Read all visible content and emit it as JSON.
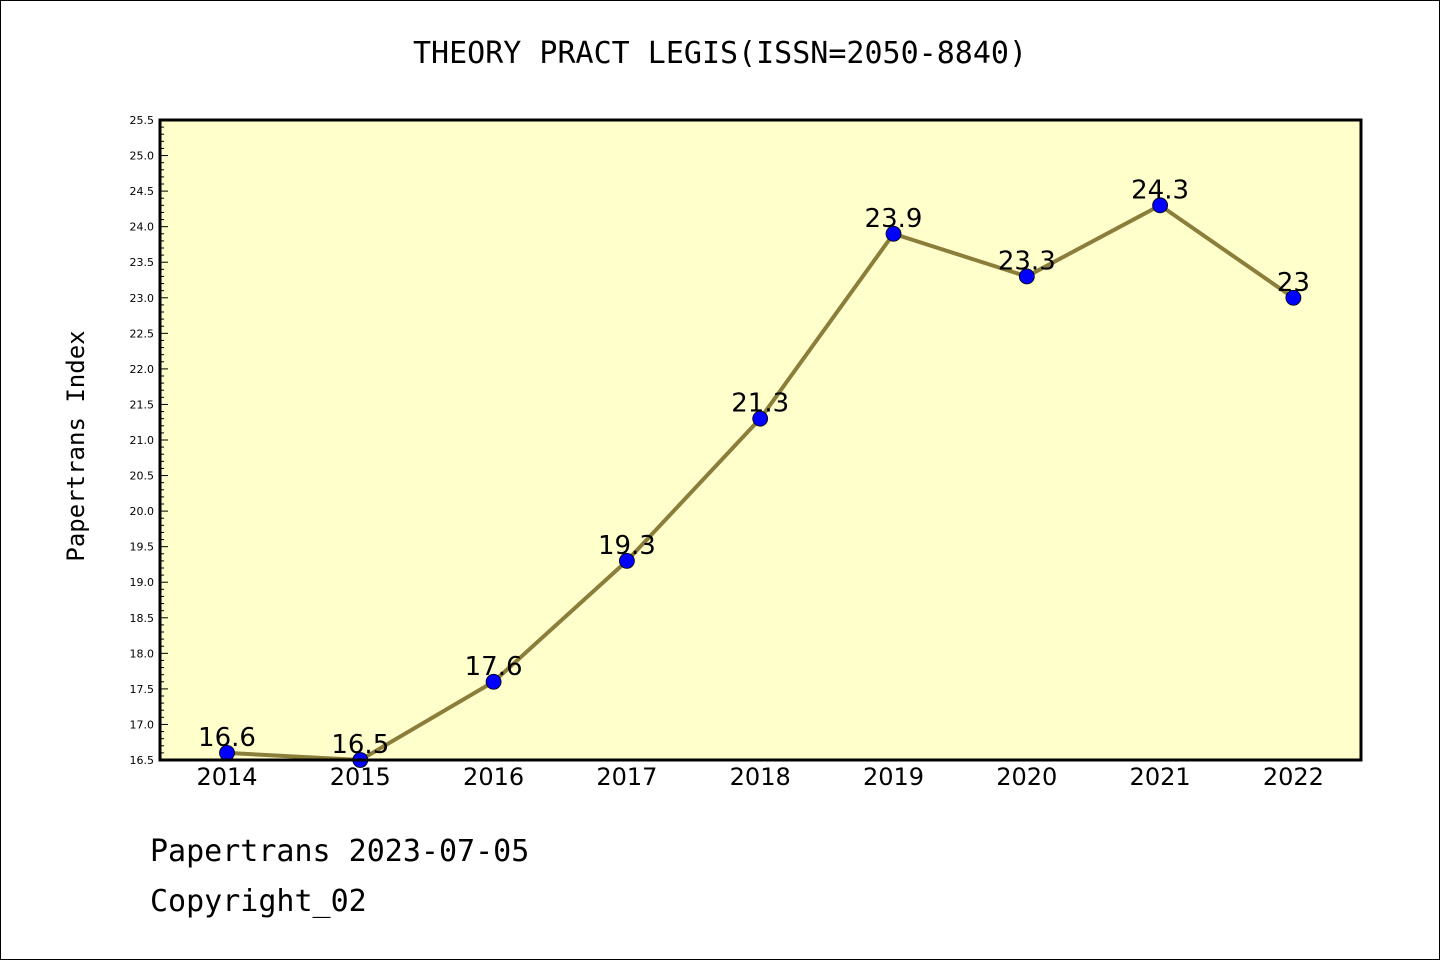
{
  "chart_data": {
    "type": "line",
    "title": "THEORY PRACT LEGIS(ISSN=2050-8840)",
    "xlabel": "",
    "ylabel": "Papertrans Index",
    "x": [
      2014,
      2015,
      2016,
      2017,
      2018,
      2019,
      2020,
      2021,
      2022
    ],
    "y": [
      16.6,
      16.5,
      17.6,
      19.3,
      21.3,
      23.9,
      23.3,
      24.3,
      23
    ],
    "data_labels": [
      "16.6",
      "16.5",
      "17.6",
      "19.3",
      "21.3",
      "23.9",
      "23.3",
      "24.3",
      "23"
    ],
    "ylim": [
      16.5,
      25.5
    ],
    "y_ticks": [
      "16.5",
      "17.0",
      "17.5",
      "18.0",
      "18.5",
      "19.0",
      "19.5",
      "20.0",
      "20.5",
      "21.0",
      "21.5",
      "22.0",
      "22.5",
      "23.0",
      "23.5",
      "24.0",
      "24.5",
      "25.0",
      "25.5"
    ],
    "grid": false,
    "colors": {
      "plot_background": "#ffffcc",
      "line": "#8b7d3a",
      "marker": "#0000ff"
    }
  },
  "footer": {
    "date_text": "Papertrans 2023-07-05",
    "copyright_text": "Copyright_02"
  }
}
